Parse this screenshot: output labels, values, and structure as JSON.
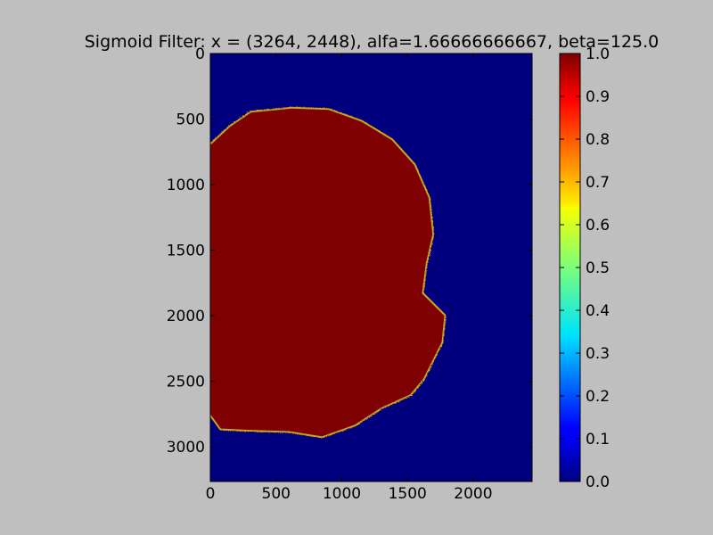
{
  "chart_data": {
    "type": "heatmap",
    "title": "Sigmoid Filter: x = (3264, 2448), alfa=1.66666666667, beta=125.0",
    "xlabel": "",
    "ylabel": "",
    "image_shape": [
      3264,
      2448
    ],
    "xlim": [
      0,
      2448
    ],
    "ylim": [
      3264,
      0
    ],
    "x_ticks": [
      0,
      500,
      1000,
      1500,
      2000
    ],
    "y_ticks": [
      0,
      500,
      1000,
      1500,
      2000,
      2500,
      3000
    ],
    "colormap": "jet",
    "colorbar": {
      "range": [
        0.0,
        1.0
      ],
      "ticks": [
        "0.0",
        "0.1",
        "0.2",
        "0.3",
        "0.4",
        "0.5",
        "0.6",
        "0.7",
        "0.8",
        "0.9",
        "1.0"
      ]
    },
    "background_value": 0.0,
    "foreground_value": 1.0,
    "foreground_region_outline": [
      [
        0,
        700
      ],
      [
        150,
        560
      ],
      [
        310,
        450
      ],
      [
        620,
        420
      ],
      [
        900,
        430
      ],
      [
        1150,
        520
      ],
      [
        1380,
        660
      ],
      [
        1550,
        850
      ],
      [
        1660,
        1100
      ],
      [
        1690,
        1380
      ],
      [
        1640,
        1600
      ],
      [
        1610,
        1830
      ],
      [
        1780,
        2000
      ],
      [
        1760,
        2200
      ],
      [
        1620,
        2480
      ],
      [
        1520,
        2600
      ],
      [
        1300,
        2700
      ],
      [
        1100,
        2830
      ],
      [
        850,
        2920
      ],
      [
        600,
        2880
      ],
      [
        300,
        2870
      ],
      [
        80,
        2860
      ],
      [
        0,
        2750
      ]
    ],
    "grid": false
  }
}
